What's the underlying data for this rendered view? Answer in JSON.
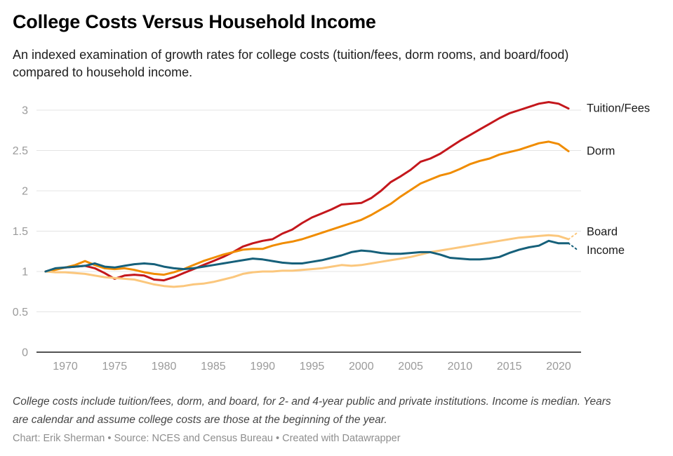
{
  "header": {
    "title": "College Costs Versus Household Income",
    "subtitle": "An indexed examination of growth rates for college costs (tuition/fees, dorm rooms, and board/food) compared to household income."
  },
  "footer": {
    "notes": "College costs include tuition/fees, dorm, and board, for 2- and 4-year public and private institutions. Income is median. Years are calendar and assume college costs are those at the beginning of the year.",
    "byline": "Chart: Erik Sherman • Source: NCES and Census Bureau • Created with Datawrapper"
  },
  "colors": {
    "tuition": "#c4171c",
    "dorm": "#f08c00",
    "board": "#fbc77d",
    "income": "#16607a",
    "gridline": "#e4e4e4",
    "zero_axis": "#1a1a1a",
    "tick_text": "#9a9a9a",
    "label_text": "#1a1a1a"
  },
  "chart_data": {
    "type": "line",
    "title": "College Costs Versus Household Income",
    "grid": true,
    "legend_position": "labels-at-line-ends-right",
    "x_range": [
      1967,
      2022.5
    ],
    "y_range": [
      0,
      3.17
    ],
    "x_ticks": [
      1970,
      1975,
      1980,
      1985,
      1990,
      1995,
      2000,
      2005,
      2010,
      2015,
      2020
    ],
    "y_ticks": [
      "0",
      "0.5",
      "1",
      "1.5",
      "2",
      "2.5",
      "3"
    ],
    "x": [
      1968,
      1969,
      1970,
      1971,
      1972,
      1973,
      1974,
      1975,
      1976,
      1977,
      1978,
      1979,
      1980,
      1981,
      1982,
      1983,
      1984,
      1985,
      1986,
      1987,
      1988,
      1989,
      1990,
      1991,
      1992,
      1993,
      1994,
      1995,
      1996,
      1997,
      1998,
      1999,
      2000,
      2001,
      2002,
      2003,
      2004,
      2005,
      2006,
      2007,
      2008,
      2009,
      2010,
      2011,
      2012,
      2013,
      2014,
      2015,
      2016,
      2017,
      2018,
      2019,
      2020,
      2021
    ],
    "series": [
      {
        "name": "Tuition/Fees",
        "color": "#c4171c",
        "values": [
          1.0,
          1.03,
          1.05,
          1.06,
          1.07,
          1.04,
          0.98,
          0.91,
          0.95,
          0.96,
          0.95,
          0.9,
          0.89,
          0.93,
          0.98,
          1.03,
          1.08,
          1.13,
          1.18,
          1.24,
          1.31,
          1.35,
          1.38,
          1.4,
          1.47,
          1.52,
          1.6,
          1.67,
          1.72,
          1.77,
          1.83,
          1.84,
          1.85,
          1.91,
          2.0,
          2.11,
          2.18,
          2.26,
          2.36,
          2.4,
          2.46,
          2.54,
          2.62,
          2.69,
          2.76,
          2.83,
          2.9,
          2.96,
          3.0,
          3.04,
          3.08,
          3.1,
          3.08,
          3.02
        ]
      },
      {
        "name": "Dorm",
        "color": "#f08c00",
        "values": [
          1.0,
          1.02,
          1.05,
          1.08,
          1.13,
          1.08,
          1.04,
          1.03,
          1.04,
          1.02,
          0.99,
          0.97,
          0.96,
          0.99,
          1.03,
          1.08,
          1.13,
          1.17,
          1.21,
          1.24,
          1.27,
          1.28,
          1.28,
          1.32,
          1.35,
          1.37,
          1.4,
          1.44,
          1.48,
          1.52,
          1.56,
          1.6,
          1.64,
          1.7,
          1.77,
          1.84,
          1.93,
          2.01,
          2.09,
          2.14,
          2.19,
          2.22,
          2.27,
          2.33,
          2.37,
          2.4,
          2.45,
          2.48,
          2.51,
          2.55,
          2.59,
          2.61,
          2.58,
          2.49
        ]
      },
      {
        "name": "Board",
        "color": "#fbc77d",
        "values": [
          1.0,
          0.99,
          0.99,
          0.98,
          0.97,
          0.95,
          0.93,
          0.92,
          0.91,
          0.9,
          0.87,
          0.84,
          0.82,
          0.81,
          0.82,
          0.84,
          0.85,
          0.87,
          0.9,
          0.93,
          0.97,
          0.99,
          1.0,
          1.0,
          1.01,
          1.01,
          1.02,
          1.03,
          1.04,
          1.06,
          1.08,
          1.07,
          1.08,
          1.1,
          1.12,
          1.14,
          1.16,
          1.18,
          1.21,
          1.24,
          1.26,
          1.28,
          1.3,
          1.32,
          1.34,
          1.36,
          1.38,
          1.4,
          1.42,
          1.43,
          1.44,
          1.45,
          1.44,
          1.4
        ],
        "dashed_projection": {
          "x": 2022,
          "value": 1.49
        }
      },
      {
        "name": "Income",
        "color": "#16607a",
        "values": [
          1.0,
          1.04,
          1.05,
          1.06,
          1.07,
          1.1,
          1.06,
          1.05,
          1.07,
          1.09,
          1.1,
          1.09,
          1.06,
          1.04,
          1.03,
          1.04,
          1.06,
          1.08,
          1.1,
          1.12,
          1.14,
          1.16,
          1.15,
          1.13,
          1.11,
          1.1,
          1.1,
          1.12,
          1.14,
          1.17,
          1.2,
          1.24,
          1.26,
          1.25,
          1.23,
          1.22,
          1.22,
          1.23,
          1.24,
          1.24,
          1.21,
          1.17,
          1.16,
          1.15,
          1.15,
          1.16,
          1.18,
          1.23,
          1.27,
          1.3,
          1.32,
          1.38,
          1.35,
          1.35
        ],
        "dashed_projection": {
          "x": 2022,
          "value": 1.26
        }
      }
    ]
  }
}
